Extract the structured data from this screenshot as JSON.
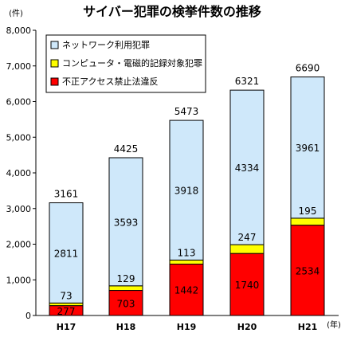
{
  "chart_data": {
    "type": "bar",
    "stacked": true,
    "title": "サイバー犯罪の検挙件数の推移",
    "y_unit_label": "(件)",
    "x_unit_label": "(年)",
    "categories": [
      "H17",
      "H18",
      "H19",
      "H20",
      "H21"
    ],
    "series": [
      {
        "name": "不正アクセス禁止法違反",
        "color": "#ff0000",
        "values": [
          277,
          703,
          1442,
          1740,
          2534
        ]
      },
      {
        "name": "コンピュータ・電磁的記録対象犯罪",
        "color": "#ffff00",
        "values": [
          73,
          129,
          113,
          247,
          195
        ]
      },
      {
        "name": "ネットワーク利用犯罪",
        "color": "#cfe8fa",
        "values": [
          2811,
          3593,
          3918,
          4334,
          3961
        ]
      }
    ],
    "totals": [
      3161,
      4425,
      5473,
      6321,
      6690
    ],
    "y_ticks": [
      "0",
      "1,000",
      "2,000",
      "3,000",
      "4,000",
      "5,000",
      "6,000",
      "7,000",
      "8,000"
    ],
    "ylim": [
      0,
      8000
    ],
    "legend_position": "top-left",
    "grid": false
  }
}
